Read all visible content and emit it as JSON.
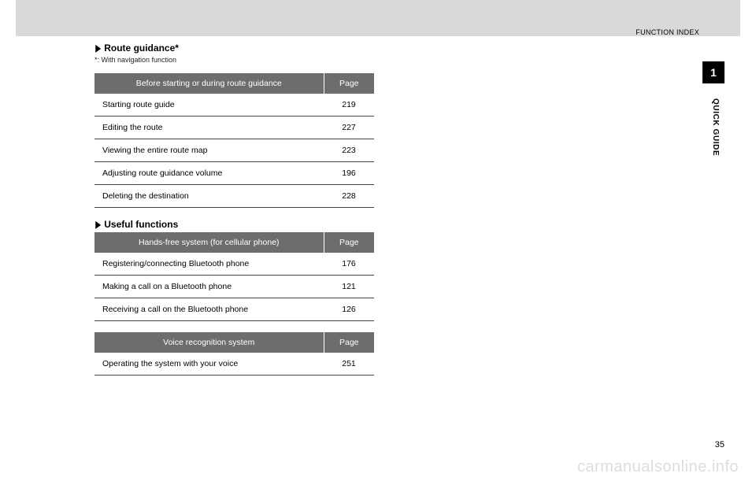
{
  "header": {
    "label": "FUNCTION INDEX"
  },
  "tab": {
    "number": "1",
    "side_label": "QUICK GUIDE"
  },
  "section1": {
    "arrow": "▶",
    "title": "Route guidance*",
    "footnote": "*:   With navigation function",
    "table": {
      "head_left": "Before starting or during route guidance",
      "head_right": "Page",
      "rows": [
        {
          "label": "Starting route guide",
          "page": "219"
        },
        {
          "label": "Editing the route",
          "page": "227"
        },
        {
          "label": "Viewing the entire route map",
          "page": "223"
        },
        {
          "label": "Adjusting route guidance volume",
          "page": "196"
        },
        {
          "label": "Deleting the destination",
          "page": "228"
        }
      ]
    }
  },
  "section2": {
    "arrow": "▶",
    "title": "Useful functions",
    "table1": {
      "head_left": "Hands-free system (for cellular phone)",
      "head_right": "Page",
      "rows": [
        {
          "label": "Registering/connecting Bluetooth phone",
          "page": "176"
        },
        {
          "label": "Making a call on a Bluetooth phone",
          "page": "121"
        },
        {
          "label": "Receiving a call on the Bluetooth phone",
          "page": "126"
        }
      ]
    },
    "table2": {
      "head_left": "Voice recognition system",
      "head_right": "Page",
      "rows": [
        {
          "label": "Operating the system with your voice",
          "page": "251"
        }
      ]
    }
  },
  "page_number": "35",
  "watermark": "carmanualsonline.info"
}
